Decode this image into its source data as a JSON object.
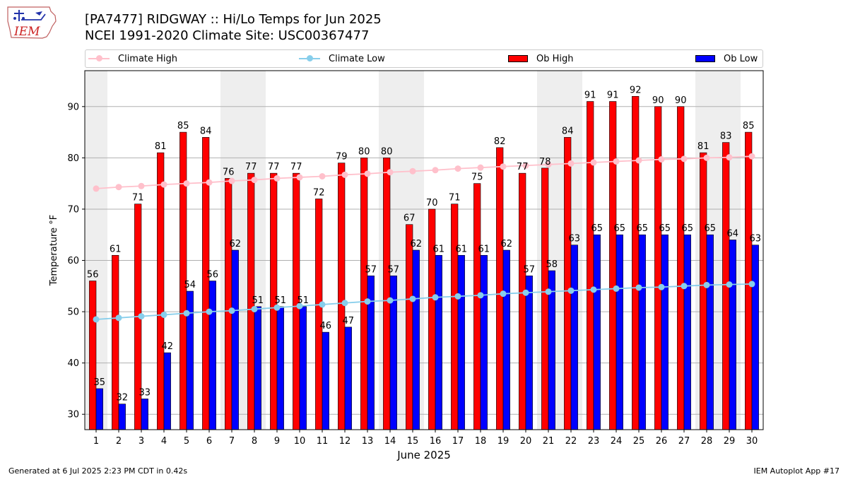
{
  "header": {
    "title_line1": "[PA7477] RIDGWAY :: Hi/Lo Temps for Jun 2025",
    "title_line2": "NCEI 1991-2020 Climate Site: USC00367477"
  },
  "logo": {
    "text": "IEM"
  },
  "legend": {
    "climate_high": "Climate High",
    "climate_low": "Climate Low",
    "ob_high": "Ob High",
    "ob_low": "Ob Low"
  },
  "colors": {
    "climate_high": "#ffc0cb",
    "climate_low": "#87ceeb",
    "ob_high": "#ff0000",
    "ob_low": "#0000ff",
    "weekend_band": "#eeeeee",
    "grid": "#b0b0b0"
  },
  "footer": {
    "left": "Generated at 6 Jul 2025 2:23 PM CDT in 0.42s",
    "right": "IEM Autoplot App #17"
  },
  "chart_data": {
    "type": "bar",
    "xlabel": "June 2025",
    "ylabel": "Temperature °F",
    "ylim": [
      27,
      97
    ],
    "yticks": [
      30,
      40,
      50,
      60,
      70,
      80,
      90
    ],
    "grid": true,
    "legend_position": "top",
    "categories": [
      "1",
      "2",
      "3",
      "4",
      "5",
      "6",
      "7",
      "8",
      "9",
      "10",
      "11",
      "12",
      "13",
      "14",
      "15",
      "16",
      "17",
      "18",
      "19",
      "20",
      "21",
      "22",
      "23",
      "24",
      "25",
      "26",
      "27",
      "28",
      "29",
      "30"
    ],
    "weekend_days": [
      1,
      7,
      8,
      14,
      15,
      21,
      22,
      28,
      29
    ],
    "series": [
      {
        "name": "Ob High",
        "kind": "bar",
        "values": [
          56,
          61,
          71,
          81,
          85,
          84,
          76,
          77,
          77,
          77,
          72,
          79,
          80,
          80,
          67,
          70,
          71,
          75,
          82,
          77,
          78,
          84,
          91,
          91,
          92,
          90,
          90,
          81,
          83,
          85
        ]
      },
      {
        "name": "Ob Low",
        "kind": "bar",
        "values": [
          35,
          32,
          33,
          42,
          54,
          56,
          62,
          51,
          51,
          51,
          46,
          47,
          57,
          57,
          62,
          61,
          61,
          61,
          62,
          57,
          58,
          63,
          65,
          65,
          65,
          65,
          65,
          65,
          64,
          63
        ]
      },
      {
        "name": "Climate High",
        "kind": "line",
        "values": [
          74.0,
          74.3,
          74.5,
          74.8,
          75.0,
          75.2,
          75.5,
          75.7,
          76.0,
          76.2,
          76.4,
          76.7,
          76.9,
          77.2,
          77.4,
          77.6,
          77.9,
          78.1,
          78.3,
          78.5,
          78.7,
          78.9,
          79.1,
          79.3,
          79.5,
          79.7,
          79.8,
          80.0,
          80.1,
          80.3
        ]
      },
      {
        "name": "Climate Low",
        "kind": "line",
        "values": [
          48.5,
          48.8,
          49.1,
          49.4,
          49.7,
          50.0,
          50.2,
          50.5,
          50.8,
          51.1,
          51.4,
          51.7,
          52.0,
          52.2,
          52.5,
          52.8,
          53.0,
          53.2,
          53.5,
          53.7,
          53.9,
          54.1,
          54.3,
          54.5,
          54.7,
          54.8,
          55.0,
          55.2,
          55.3,
          55.4
        ]
      }
    ]
  }
}
